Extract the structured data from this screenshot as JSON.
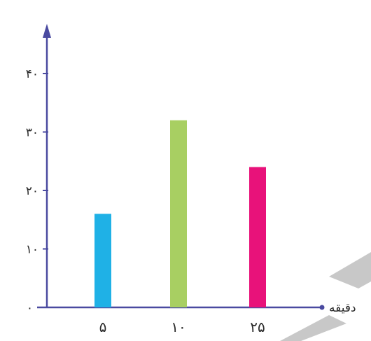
{
  "chart_data": {
    "type": "bar",
    "title": "",
    "xlabel": "دقیقه",
    "ylabel": "",
    "categories": [
      "۵",
      "۱۰",
      "۲۵"
    ],
    "values": [
      16,
      32,
      24
    ],
    "ylim": [
      0,
      45
    ],
    "yticks": [
      {
        "value": 0,
        "label": "۰"
      },
      {
        "value": 10,
        "label": "۱۰"
      },
      {
        "value": 20,
        "label": "۲۰"
      },
      {
        "value": 30,
        "label": "۳۰"
      },
      {
        "value": 40,
        "label": "۴۰"
      }
    ],
    "colors": [
      "#1fb1e6",
      "#a8cf62",
      "#e8127a"
    ],
    "axis_color": "#4a4aa0",
    "grid": false,
    "legend": "none"
  }
}
